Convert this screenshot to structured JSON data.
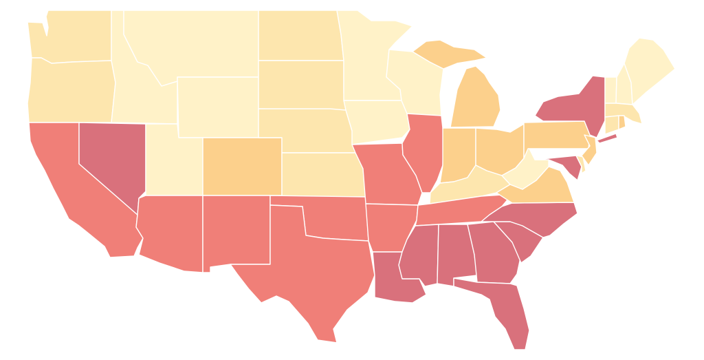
{
  "map": {
    "colors": {
      "tier1": "#fff2c8",
      "tier2": "#fde6ae",
      "tier3": "#fcd08c",
      "tier4": "#f07f78",
      "tier5": "#d9717c"
    },
    "states": [
      {
        "code": "WA",
        "tier": "tier2"
      },
      {
        "code": "OR",
        "tier": "tier2"
      },
      {
        "code": "CA",
        "tier": "tier4"
      },
      {
        "code": "NV",
        "tier": "tier5"
      },
      {
        "code": "ID",
        "tier": "tier1"
      },
      {
        "code": "MT",
        "tier": "tier1"
      },
      {
        "code": "WY",
        "tier": "tier1"
      },
      {
        "code": "UT",
        "tier": "tier1"
      },
      {
        "code": "CO",
        "tier": "tier3"
      },
      {
        "code": "AZ",
        "tier": "tier4"
      },
      {
        "code": "NM",
        "tier": "tier4"
      },
      {
        "code": "ND",
        "tier": "tier2"
      },
      {
        "code": "SD",
        "tier": "tier2"
      },
      {
        "code": "NE",
        "tier": "tier2"
      },
      {
        "code": "KS",
        "tier": "tier2"
      },
      {
        "code": "OK",
        "tier": "tier4"
      },
      {
        "code": "TX",
        "tier": "tier4"
      },
      {
        "code": "MN",
        "tier": "tier1"
      },
      {
        "code": "IA",
        "tier": "tier1"
      },
      {
        "code": "MO",
        "tier": "tier4"
      },
      {
        "code": "AR",
        "tier": "tier4"
      },
      {
        "code": "LA",
        "tier": "tier5"
      },
      {
        "code": "WI",
        "tier": "tier1"
      },
      {
        "code": "IL",
        "tier": "tier4"
      },
      {
        "code": "MI",
        "tier": "tier3"
      },
      {
        "code": "IN",
        "tier": "tier3"
      },
      {
        "code": "OH",
        "tier": "tier3"
      },
      {
        "code": "KY",
        "tier": "tier2"
      },
      {
        "code": "TN",
        "tier": "tier4"
      },
      {
        "code": "MS",
        "tier": "tier5"
      },
      {
        "code": "AL",
        "tier": "tier5"
      },
      {
        "code": "GA",
        "tier": "tier5"
      },
      {
        "code": "FL",
        "tier": "tier5"
      },
      {
        "code": "SC",
        "tier": "tier5"
      },
      {
        "code": "NC",
        "tier": "tier5"
      },
      {
        "code": "VA",
        "tier": "tier3"
      },
      {
        "code": "WV",
        "tier": "tier1"
      },
      {
        "code": "PA",
        "tier": "tier3"
      },
      {
        "code": "NY",
        "tier": "tier5"
      },
      {
        "code": "VT",
        "tier": "tier1"
      },
      {
        "code": "NH",
        "tier": "tier1"
      },
      {
        "code": "ME",
        "tier": "tier1"
      },
      {
        "code": "MA",
        "tier": "tier2"
      },
      {
        "code": "RI",
        "tier": "tier3"
      },
      {
        "code": "CT",
        "tier": "tier2"
      },
      {
        "code": "NJ",
        "tier": "tier3"
      },
      {
        "code": "DE",
        "tier": "tier2"
      },
      {
        "code": "MD",
        "tier": "tier5"
      }
    ]
  }
}
